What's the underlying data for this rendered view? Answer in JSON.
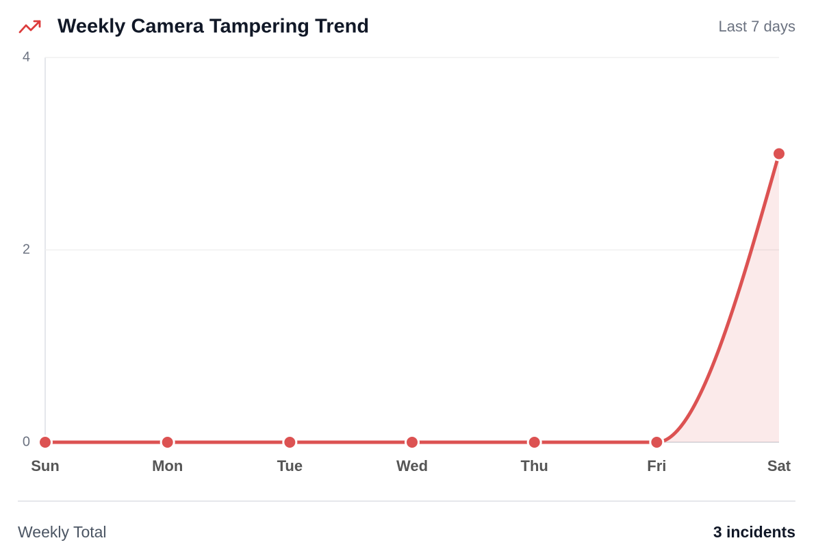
{
  "header": {
    "title": "Weekly Camera Tampering Trend",
    "period": "Last 7 days"
  },
  "chart_data": {
    "type": "line",
    "categories": [
      "Sun",
      "Mon",
      "Tue",
      "Wed",
      "Thu",
      "Fri",
      "Sat"
    ],
    "series": [
      {
        "color": "#dc5252",
        "values": [
          0,
          0,
          0,
          0,
          0,
          0,
          3
        ]
      }
    ],
    "ylim": [
      0,
      4
    ],
    "yticks": [
      0,
      2,
      4
    ],
    "grid": true,
    "area": true,
    "smooth": true
  },
  "footer": {
    "label": "Weekly Total",
    "value": "3 incidents"
  }
}
